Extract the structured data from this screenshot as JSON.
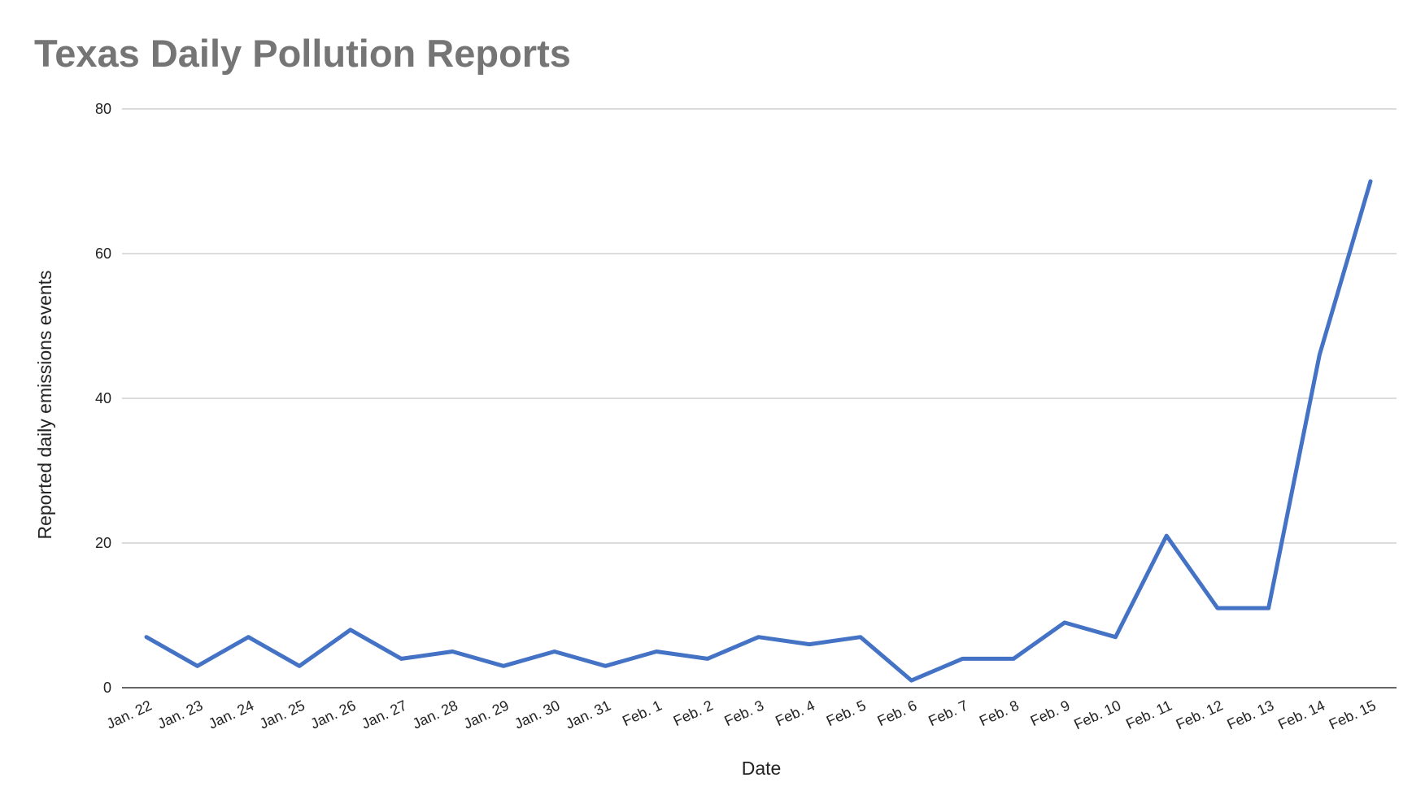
{
  "chart_data": {
    "type": "line",
    "title": "Texas Daily Pollution Reports",
    "xlabel": "Date",
    "ylabel": "Reported daily emissions events",
    "ylim": [
      0,
      80
    ],
    "yticks": [
      0,
      20,
      40,
      60,
      80
    ],
    "grid": true,
    "legend": "none",
    "categories": [
      "Jan. 22",
      "Jan. 23",
      "Jan. 24",
      "Jan. 25",
      "Jan. 26",
      "Jan. 27",
      "Jan. 28",
      "Jan. 29",
      "Jan. 30",
      "Jan. 31",
      "Feb. 1",
      "Feb. 2",
      "Feb. 3",
      "Feb. 4",
      "Feb. 5",
      "Feb. 6",
      "Feb. 7",
      "Feb. 8",
      "Feb. 9",
      "Feb. 10",
      "Feb. 11",
      "Feb. 12",
      "Feb. 13",
      "Feb. 14",
      "Feb. 15"
    ],
    "series": [
      {
        "values": [
          7,
          3,
          7,
          3,
          8,
          4,
          5,
          3,
          5,
          3,
          5,
          4,
          7,
          6,
          7,
          1,
          4,
          4,
          9,
          7,
          21,
          11,
          11,
          46,
          70
        ],
        "color": "#4472C4"
      }
    ],
    "colors": {
      "gridline": "#C8C8C8",
      "axis": "#333333",
      "title": "#757575",
      "text": "#222222"
    }
  }
}
